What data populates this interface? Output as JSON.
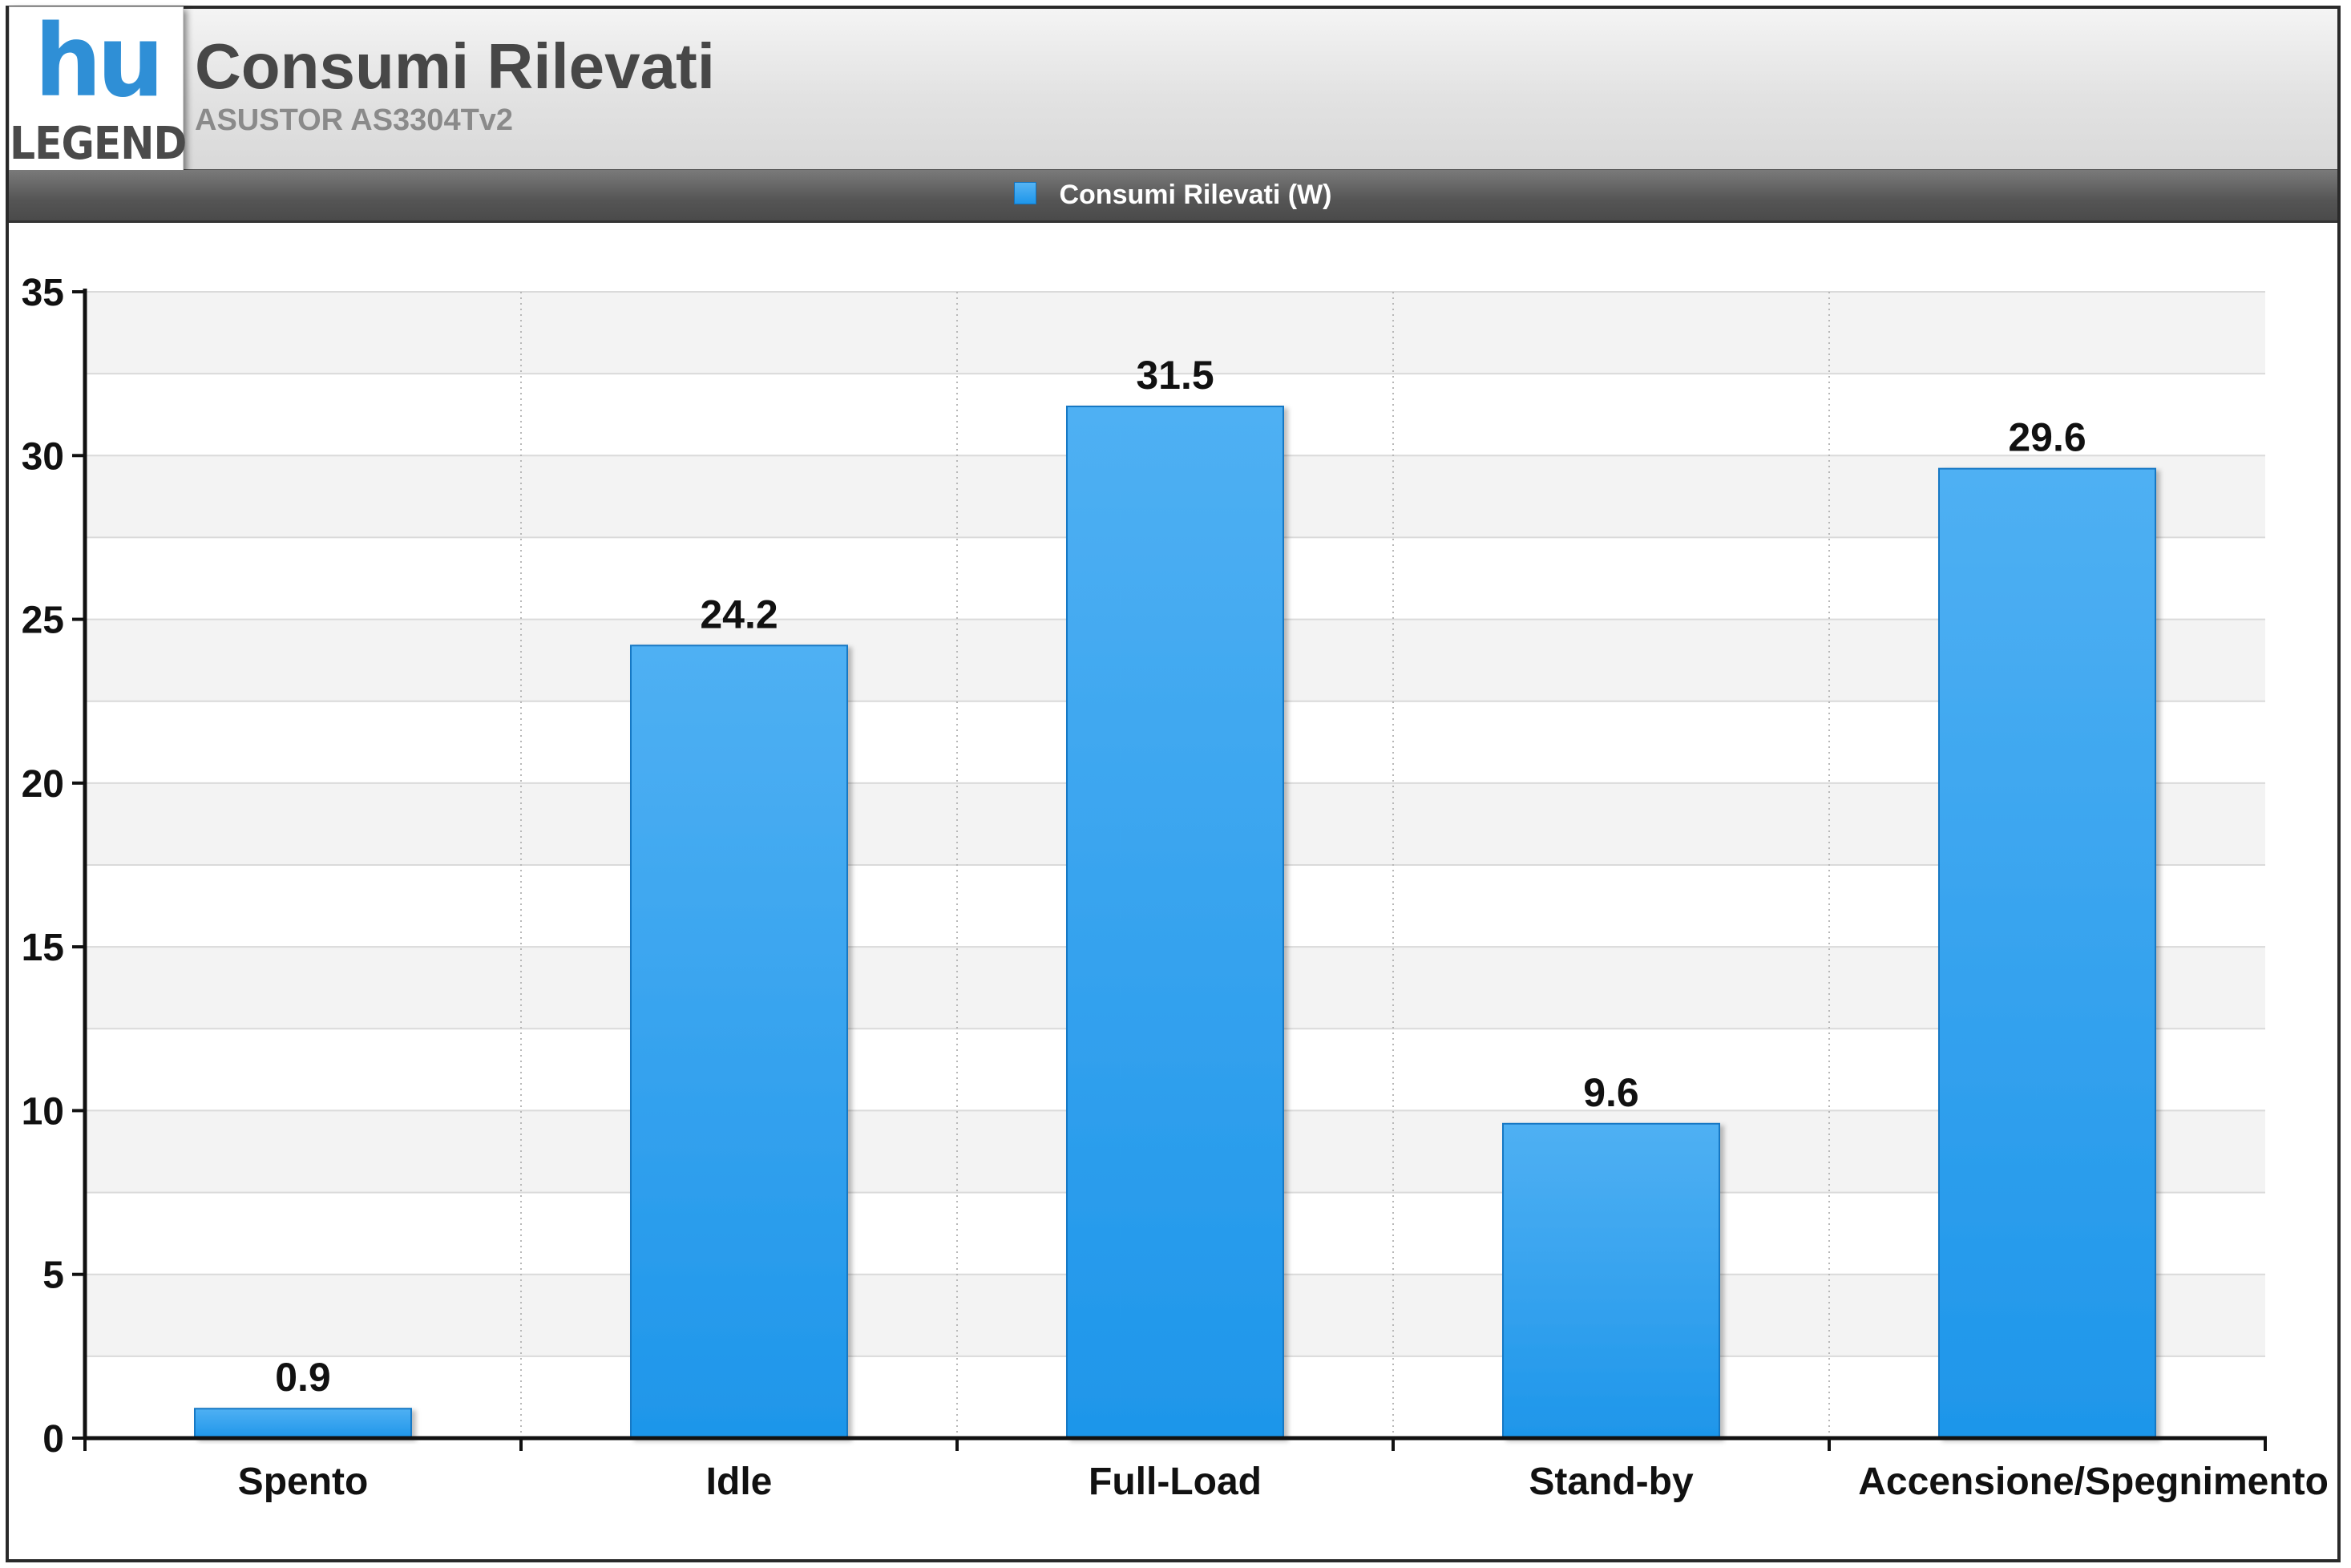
{
  "header": {
    "title": "Consumi Rilevati",
    "subtitle": "ASUSTOR AS3304Tv2"
  },
  "logo": {
    "letters": "hu",
    "word": "LEGEND"
  },
  "legend": {
    "label": "Consumi Rilevati (W)",
    "color": "#2196f3"
  },
  "chart_data": {
    "type": "bar",
    "title": "Consumi Rilevati",
    "subtitle": "ASUSTOR AS3304Tv2",
    "categories": [
      "Spento",
      "Idle",
      "Full-Load",
      "Stand-by",
      "Accensione/Spegnimento"
    ],
    "series": [
      {
        "name": "Consumi Rilevati (W)",
        "values": [
          0.9,
          24.2,
          31.5,
          9.6,
          29.6
        ]
      }
    ],
    "value_labels": [
      "0.9",
      "24.2",
      "31.5",
      "9.6",
      "29.6"
    ],
    "ylim": [
      0,
      35
    ],
    "yticks": [
      0,
      5,
      10,
      15,
      20,
      25,
      30,
      35
    ],
    "xlabel": "",
    "ylabel": "",
    "grid": true,
    "legend_position": "top-center",
    "bar_color": "#2196f3"
  }
}
